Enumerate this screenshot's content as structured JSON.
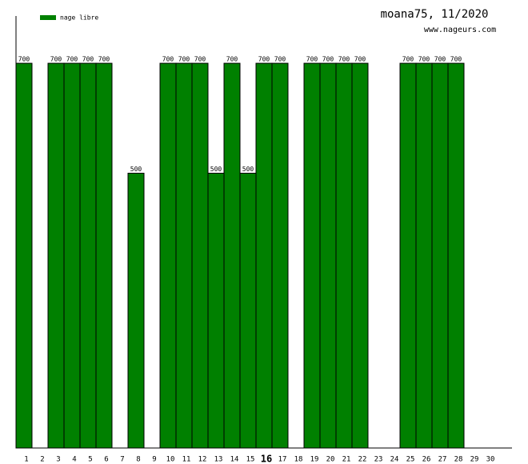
{
  "chart_data": {
    "type": "bar",
    "title": "moana75, 11/2020",
    "subtitle": "www.nageurs.com",
    "categories": [
      "1",
      "2",
      "3",
      "4",
      "5",
      "6",
      "7",
      "8",
      "9",
      "10",
      "11",
      "12",
      "13",
      "14",
      "15",
      "16",
      "17",
      "18",
      "19",
      "20",
      "21",
      "22",
      "23",
      "24",
      "25",
      "26",
      "27",
      "28",
      "29",
      "30"
    ],
    "series": [
      {
        "name": "nage libre",
        "color": "#008000",
        "values": [
          700,
          null,
          700,
          700,
          700,
          700,
          null,
          500,
          null,
          700,
          700,
          700,
          500,
          700,
          500,
          700,
          700,
          null,
          700,
          700,
          700,
          700,
          null,
          null,
          700,
          700,
          700,
          700,
          null,
          null
        ]
      }
    ],
    "ylim": [
      0,
      786
    ],
    "highlight_index": 15
  }
}
